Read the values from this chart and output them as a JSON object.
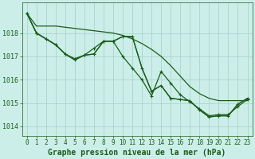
{
  "background_color": "#cceee8",
  "grid_color": "#aad4ce",
  "line_color": "#1a5c1a",
  "title": "Graphe pression niveau de la mer (hPa)",
  "title_fontsize": 7,
  "ylim": [
    1013.6,
    1019.3
  ],
  "yticks": [
    1014,
    1015,
    1016,
    1017,
    1018
  ],
  "ytick_fontsize": 6,
  "xtick_fontsize": 5.5,
  "xlim": [
    -0.5,
    23.5
  ],
  "xticks": [
    0,
    1,
    2,
    3,
    4,
    5,
    6,
    7,
    8,
    9,
    10,
    11,
    12,
    13,
    14,
    15,
    16,
    17,
    18,
    19,
    20,
    21,
    22,
    23
  ],
  "series": [
    {
      "x": [
        0,
        1,
        2,
        3,
        4,
        5,
        6,
        7,
        8,
        9,
        10,
        11,
        12,
        13,
        14,
        15,
        16,
        17,
        18,
        19,
        20,
        21,
        22,
        23
      ],
      "y": [
        1018.85,
        1018.3,
        1018.3,
        1018.3,
        1018.25,
        1018.2,
        1018.15,
        1018.1,
        1018.05,
        1018.0,
        1017.9,
        1017.75,
        1017.55,
        1017.3,
        1017.0,
        1016.6,
        1016.15,
        1015.7,
        1015.4,
        1015.2,
        1015.1,
        1015.1,
        1015.1,
        1015.1
      ],
      "marker": false,
      "linewidth": 0.9
    },
    {
      "x": [
        0,
        1,
        2,
        3,
        4,
        5,
        6,
        7,
        8,
        9,
        10,
        11,
        12,
        13,
        14,
        15,
        16,
        17,
        18,
        19,
        20,
        21,
        22,
        23
      ],
      "y": [
        1018.85,
        1018.0,
        1017.75,
        1017.5,
        1017.1,
        1016.9,
        1017.05,
        1017.35,
        1017.65,
        1017.65,
        1017.0,
        1016.5,
        1016.0,
        1015.3,
        1016.35,
        1015.85,
        1015.35,
        1015.05,
        1014.75,
        1014.45,
        1014.5,
        1014.5,
        1014.85,
        1015.15
      ],
      "marker": true,
      "linewidth": 0.9
    },
    {
      "x": [
        0,
        1,
        2,
        3,
        4,
        5,
        6,
        7,
        8,
        9,
        10,
        11,
        12,
        13,
        14,
        15,
        16,
        17,
        18,
        19,
        20,
        21,
        22,
        23
      ],
      "y": [
        1018.85,
        1018.0,
        1017.75,
        1017.5,
        1017.1,
        1016.85,
        1017.05,
        1017.1,
        1017.65,
        1017.65,
        1017.85,
        1017.85,
        1016.5,
        1015.5,
        1015.75,
        1015.2,
        1015.15,
        1015.1,
        1014.7,
        1014.4,
        1014.45,
        1014.45,
        1014.95,
        1015.2
      ],
      "marker": false,
      "linewidth": 0.9
    },
    {
      "x": [
        0,
        1,
        2,
        3,
        4,
        5,
        6,
        7,
        8,
        9,
        10,
        11,
        12,
        13,
        14,
        15,
        16,
        17,
        18,
        19,
        20,
        21,
        22,
        23
      ],
      "y": [
        1018.85,
        1018.0,
        1017.75,
        1017.5,
        1017.1,
        1016.85,
        1017.05,
        1017.1,
        1017.65,
        1017.65,
        1017.85,
        1017.85,
        1016.5,
        1015.5,
        1015.75,
        1015.2,
        1015.15,
        1015.1,
        1014.7,
        1014.4,
        1014.45,
        1014.45,
        1014.95,
        1015.2
      ],
      "marker": true,
      "linewidth": 0.9
    }
  ]
}
